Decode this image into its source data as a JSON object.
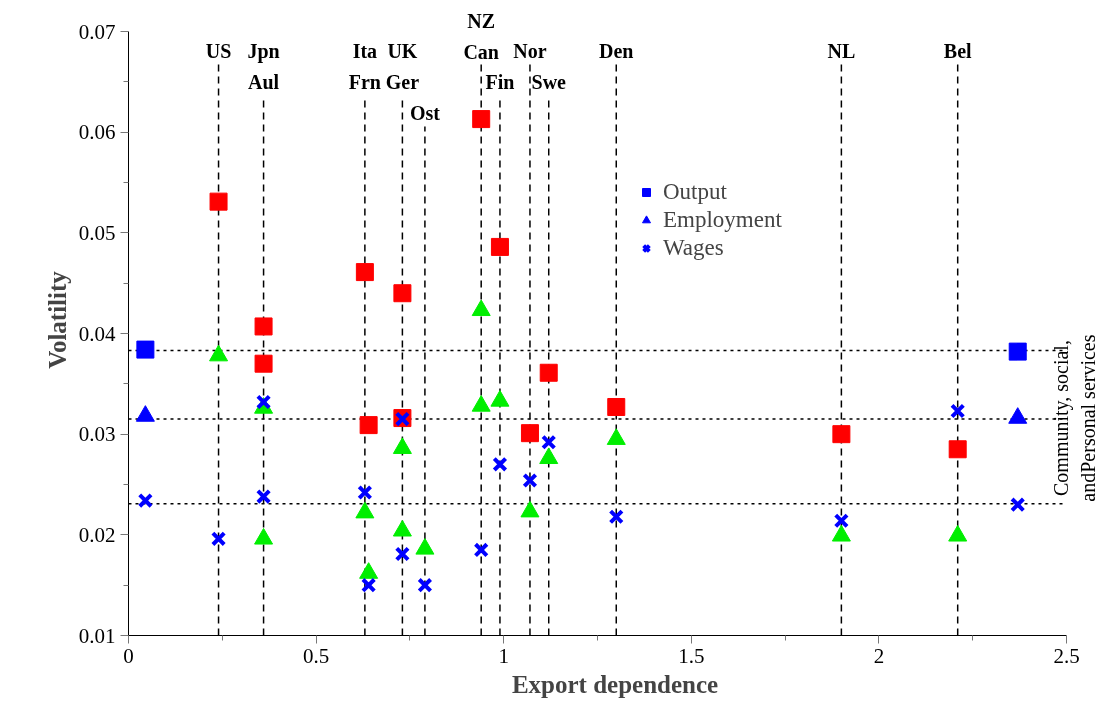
{
  "chart_data": {
    "type": "scatter",
    "xlabel": "Export dependence",
    "ylabel": "Volatility",
    "xlim": [
      0,
      2.5
    ],
    "xticks": [
      0,
      0.5,
      1,
      1.5,
      2,
      2.5
    ],
    "ylim": [
      0.01,
      0.07
    ],
    "yticks": [
      0.01,
      0.02,
      0.03,
      0.04,
      0.05,
      0.06,
      0.07
    ],
    "grid": false,
    "legend": "right",
    "annotations": [
      "Community, social,\nandPersonal services"
    ],
    "series": [
      {
        "name": "Output",
        "color": "#0000ff",
        "marker": "square",
        "x": [
          0.045,
          2.37
        ],
        "values": [
          0.0384,
          0.0382
        ]
      },
      {
        "name": "Employment",
        "color": "#0000ff",
        "marker": "triangle",
        "x": [
          0.045,
          2.37
        ],
        "values": [
          0.0318,
          0.0316
        ]
      },
      {
        "name": "Wages",
        "color": "#0000ff",
        "marker": "cross",
        "x": [
          0.045,
          2.37
        ],
        "values": [
          0.0234,
          0.023
        ]
      },
      {
        "color": "#ff0000",
        "marker": "square",
        "x": [
          0.24,
          0.36,
          0.36,
          0.63,
          0.64,
          0.73,
          0.73,
          0.94,
          0.99,
          1.07,
          1.12,
          1.3,
          1.9,
          2.21
        ],
        "values": [
          0.0531,
          0.0407,
          0.037,
          0.0461,
          0.0309,
          0.044,
          0.0316,
          0.0613,
          0.0486,
          0.0301,
          0.0361,
          0.0327,
          0.03,
          0.0285
        ]
      },
      {
        "color": "#00ee00",
        "marker": "triangle",
        "x": [
          0.24,
          0.36,
          0.36,
          0.63,
          0.64,
          0.73,
          0.73,
          0.79,
          0.94,
          0.94,
          0.99,
          1.07,
          1.12,
          1.3,
          1.9,
          2.21
        ],
        "values": [
          0.0378,
          0.0326,
          0.0196,
          0.0222,
          0.0162,
          0.0286,
          0.0204,
          0.0186,
          0.0423,
          0.0328,
          0.0333,
          0.0223,
          0.0276,
          0.0295,
          0.0199,
          0.0199
        ]
      },
      {
        "color": "#0000ff",
        "marker": "cross",
        "x": [
          0.24,
          0.36,
          0.36,
          0.63,
          0.64,
          0.73,
          0.73,
          0.79,
          0.94,
          0.99,
          1.07,
          1.12,
          1.3,
          1.9,
          2.21
        ],
        "values": [
          0.0196,
          0.0332,
          0.0238,
          0.0242,
          0.015,
          0.0315,
          0.0181,
          0.015,
          0.0185,
          0.027,
          0.0254,
          0.0292,
          0.0218,
          0.0214,
          0.0323
        ]
      }
    ],
    "ref_lines": [
      {
        "axis": "y",
        "value": 0.0383,
        "line_style": "dotted",
        "color": "#000000"
      },
      {
        "axis": "y",
        "value": 0.0315,
        "line_style": "dotted",
        "color": "#000000"
      },
      {
        "axis": "y",
        "value": 0.0231,
        "line_style": "dotted",
        "color": "#000000"
      },
      {
        "axis": "x",
        "value": 0.24,
        "label": "US",
        "line_style": "dashed",
        "color": "#000000"
      },
      {
        "axis": "x",
        "value": 0.36,
        "label": "Jpn\nAul",
        "line_style": "dashed",
        "color": "#000000"
      },
      {
        "axis": "x",
        "value": 0.63,
        "label": "Ita\nFrn",
        "line_style": "dashed",
        "color": "#000000"
      },
      {
        "axis": "x",
        "value": 0.73,
        "label": "UK\nGer",
        "line_style": "dashed",
        "color": "#000000"
      },
      {
        "axis": "x",
        "value": 0.79,
        "label": "Ost",
        "line_style": "dashed",
        "color": "#000000"
      },
      {
        "axis": "x",
        "value": 1.07,
        "label": "Nor",
        "line_style": "dashed",
        "color": "#000000"
      },
      {
        "axis": "x",
        "value": 0.99,
        "label": "Fin",
        "line_style": "dashed",
        "color": "#000000"
      },
      {
        "axis": "x",
        "value": 1.12,
        "label": "Swe",
        "line_style": "dashed",
        "color": "#000000"
      },
      {
        "axis": "x",
        "value": 1.3,
        "label": "Den",
        "line_style": "dashed",
        "color": "#000000"
      },
      {
        "axis": "x",
        "value": 1.9,
        "label": "NL",
        "line_style": "dashed",
        "color": "#000000"
      },
      {
        "axis": "x",
        "value": 2.21,
        "label": "Bel",
        "line_style": "dashed",
        "color": "#000000"
      },
      {
        "axis": "x",
        "value": 0.94,
        "label": "NZ\nCan",
        "line_style": "dashed",
        "color": "#000000"
      }
    ]
  }
}
